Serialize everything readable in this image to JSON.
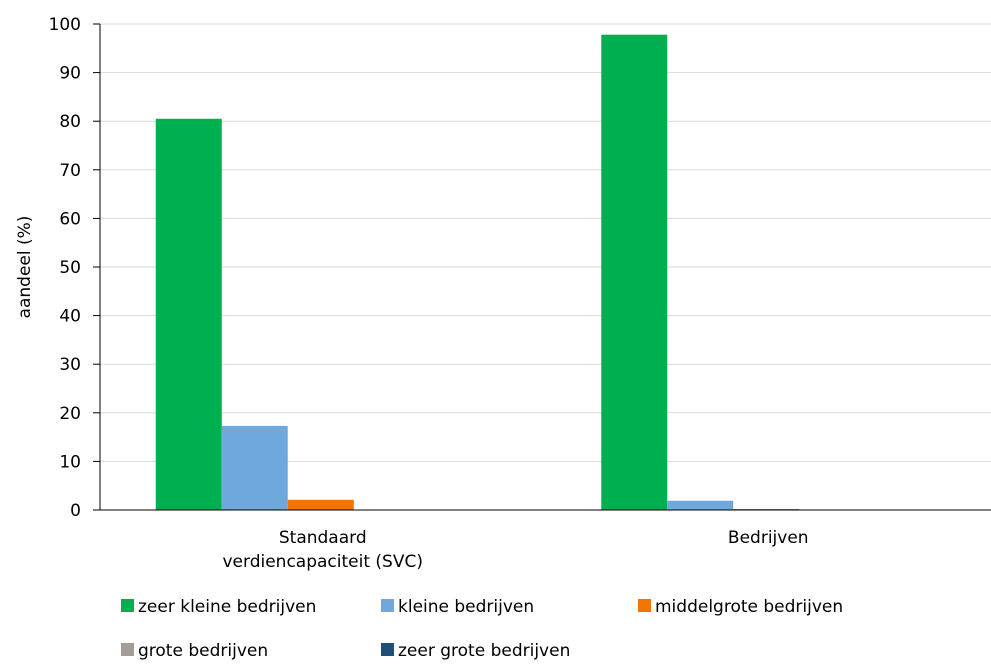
{
  "chart_data": {
    "type": "bar",
    "title": "",
    "xlabel": "",
    "ylabel": "aandeel (%)",
    "ylim": [
      0,
      100
    ],
    "yticks": [
      "0",
      "10",
      "20",
      "30",
      "40",
      "50",
      "60",
      "70",
      "80",
      "90",
      "100"
    ],
    "grid": true,
    "legend_position": "bottom",
    "categories": [
      [
        "Standaard",
        "verdiencapaciteit (SVC)"
      ],
      [
        "Bedrijven"
      ]
    ],
    "series": [
      {
        "name": "zeer kleine bedrijven",
        "color": "#00b050",
        "values": [
          80.5,
          97.8
        ]
      },
      {
        "name": "kleine bedrijven",
        "color": "#6fa8dc",
        "values": [
          17.3,
          1.9
        ]
      },
      {
        "name": "middelgrote bedrijven",
        "color": "#f27405",
        "values": [
          2.1,
          0.2
        ]
      },
      {
        "name": "grote bedrijven",
        "color": "#a59d95",
        "values": [
          0.1,
          0.0
        ]
      },
      {
        "name": "zeer grote bedrijven",
        "color": "#1f4e79",
        "values": [
          0.0,
          0.0
        ]
      }
    ]
  }
}
